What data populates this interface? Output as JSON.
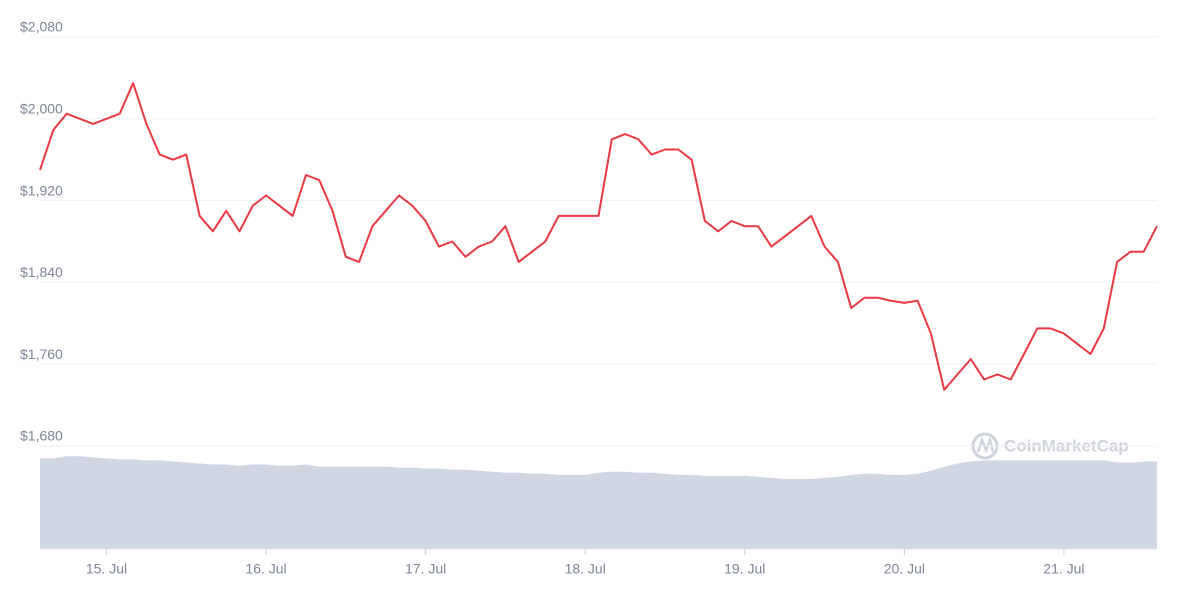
{
  "chart_data": {
    "type": "line",
    "categories": [
      null,
      null,
      null,
      null,
      null,
      "15. Jul",
      null,
      null,
      null,
      null,
      null,
      null,
      null,
      null,
      null,
      null,
      null,
      "16. Jul",
      null,
      null,
      null,
      null,
      null,
      null,
      null,
      null,
      null,
      null,
      null,
      "17. Jul",
      null,
      null,
      null,
      null,
      null,
      null,
      null,
      null,
      null,
      null,
      null,
      "18. Jul",
      null,
      null,
      null,
      null,
      null,
      null,
      null,
      null,
      null,
      null,
      null,
      "19. Jul",
      null,
      null,
      null,
      null,
      null,
      null,
      null,
      null,
      null,
      null,
      null,
      "20. Jul",
      null,
      null,
      null,
      null,
      null,
      null,
      null,
      null,
      null,
      null,
      null,
      "21. Jul",
      null,
      null,
      null,
      null,
      null,
      null,
      null
    ],
    "values": [
      1950,
      1989,
      2005,
      2000,
      1995,
      2000,
      2005,
      2035,
      1995,
      1965,
      1960,
      1965,
      1905,
      1890,
      1910,
      1890,
      1915,
      1925,
      1915,
      1905,
      1945,
      1940,
      1910,
      1865,
      1860,
      1895,
      1910,
      1925,
      1915,
      1900,
      1875,
      1880,
      1865,
      1875,
      1880,
      1895,
      1860,
      1870,
      1880,
      1905,
      1905,
      1905,
      1905,
      1980,
      1985,
      1980,
      1965,
      1970,
      1970,
      1960,
      1900,
      1890,
      1900,
      1895,
      1895,
      1875,
      1885,
      1895,
      1905,
      1875,
      1860,
      1815,
      1825,
      1825,
      1822,
      1820,
      1822,
      1790,
      1735,
      1750,
      1765,
      1745,
      1750,
      1745,
      1770,
      1795,
      1795,
      1790,
      1780,
      1770,
      1795,
      1860,
      1870,
      1870,
      1895
    ],
    "color": "#ea3943",
    "ylim": [
      1680,
      2080
    ],
    "yticks": [
      {
        "value": 1680,
        "label": "$1,680"
      },
      {
        "value": 1760,
        "label": "$1,760"
      },
      {
        "value": 1840,
        "label": "$1,840"
      },
      {
        "value": 1920,
        "label": "$1,920"
      },
      {
        "value": 2000,
        "label": "$2,000"
      },
      {
        "value": 2080,
        "label": "$2,080"
      }
    ],
    "grid": true,
    "volume": {
      "color": "#d1d6e3",
      "ylim": [
        0,
        100
      ],
      "values": [
        88,
        88,
        90,
        90,
        89,
        88,
        87,
        87,
        86,
        86,
        85,
        84,
        83,
        82,
        82,
        81,
        82,
        82,
        81,
        81,
        82,
        80,
        80,
        80,
        80,
        80,
        80,
        79,
        79,
        78,
        78,
        77,
        77,
        76,
        75,
        74,
        74,
        73,
        73,
        72,
        72,
        72,
        74,
        75,
        75,
        74,
        74,
        73,
        72,
        72,
        71,
        71,
        71,
        71,
        70,
        69,
        68,
        68,
        68,
        69,
        70,
        72,
        73,
        73,
        72,
        72,
        73,
        76,
        80,
        83,
        85,
        86,
        86,
        86,
        86,
        86,
        86,
        86,
        86,
        86,
        86,
        84,
        84,
        85,
        85
      ]
    },
    "watermark": "CoinMarketCap"
  }
}
